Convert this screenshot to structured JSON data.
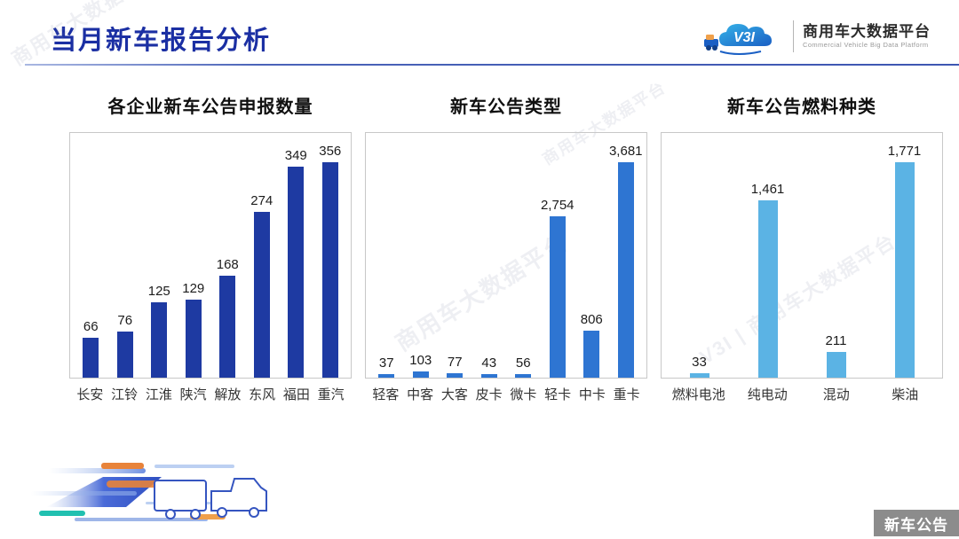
{
  "header": {
    "title": "当月新车报告分析",
    "logo": {
      "mark_text": "V3I",
      "brand_cn": "商用车大数据平台",
      "brand_en": "Commercial Vehicle Big Data Platform"
    }
  },
  "colors": {
    "title_blue": "#1b2fa3",
    "chart1_bar": "#1e3aa2",
    "chart2_bar": "#2e75d2",
    "chart3_bar": "#5bb3e4",
    "badge_bg": "#8c8c8c",
    "plot_border": "#c8c8c8"
  },
  "watermarks": [
    "商用车大数据平台",
    "V3I | 商用车大数据平台",
    "商用车大数据平台",
    "商用车大数据平台"
  ],
  "footer": {
    "badge_label": "新车公告"
  },
  "chart_data": [
    {
      "type": "bar",
      "title": "各企业新车公告申报数量",
      "categories": [
        "长安",
        "江铃",
        "江淮",
        "陕汽",
        "解放",
        "东风",
        "福田",
        "重汽"
      ],
      "values": [
        66,
        76,
        125,
        129,
        168,
        274,
        349,
        356
      ],
      "value_labels": [
        "66",
        "76",
        "125",
        "129",
        "168",
        "274",
        "349",
        "356"
      ],
      "bar_color": "#1e3aa2",
      "xlabel": "",
      "ylabel": "",
      "ylim": [
        0,
        400
      ],
      "grid": false,
      "legend": "none"
    },
    {
      "type": "bar",
      "title": "新车公告类型",
      "categories": [
        "轻客",
        "中客",
        "大客",
        "皮卡",
        "微卡",
        "轻卡",
        "中卡",
        "重卡"
      ],
      "values": [
        37,
        103,
        77,
        43,
        56,
        2754,
        806,
        3681
      ],
      "value_labels": [
        "37",
        "103",
        "77",
        "43",
        "56",
        "2,754",
        "806",
        "3,681"
      ],
      "bar_color": "#2e75d2",
      "xlabel": "",
      "ylabel": "",
      "ylim": [
        0,
        4000
      ],
      "grid": false,
      "legend": "none"
    },
    {
      "type": "bar",
      "title": "新车公告燃料种类",
      "categories": [
        "燃料电池",
        "纯电动",
        "混动",
        "柴油"
      ],
      "values": [
        33,
        1461,
        211,
        1771
      ],
      "value_labels": [
        "33",
        "1,461",
        "211",
        "1,771"
      ],
      "bar_color": "#5bb3e4",
      "xlabel": "",
      "ylabel": "",
      "ylim": [
        0,
        2000
      ],
      "grid": false,
      "legend": "none"
    }
  ]
}
